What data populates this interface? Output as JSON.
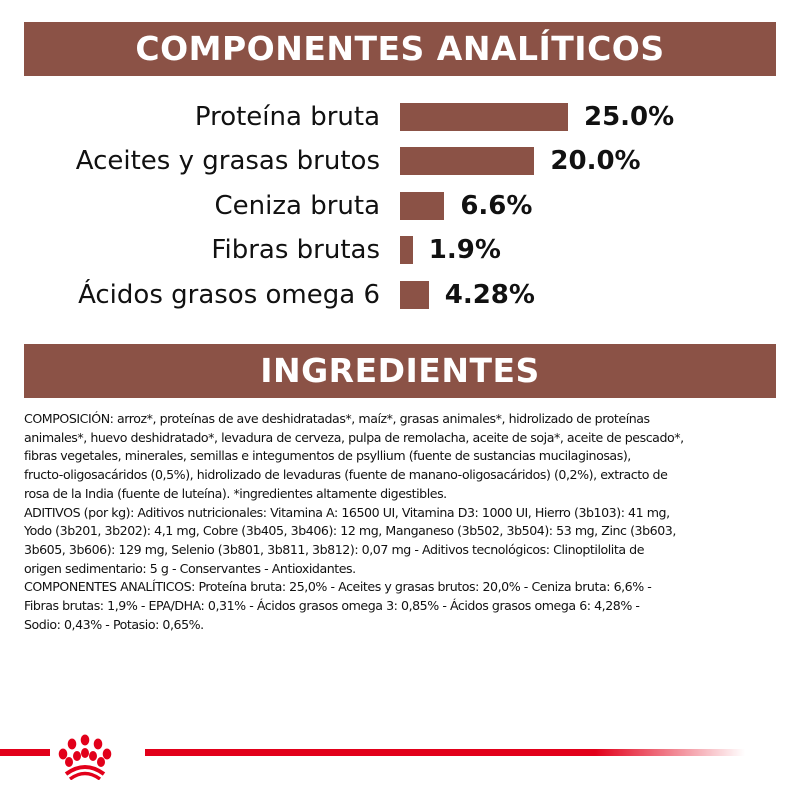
{
  "analytics_header": "COMPONENTES ANALÍTICOS",
  "ingredients_header": "INGREDIENTES",
  "chart_data": {
    "type": "bar",
    "orientation": "horizontal",
    "categories": [
      "Proteína bruta",
      "Aceites y grasas brutos",
      "Ceniza bruta",
      "Fibras brutas",
      "Ácidos grasos omega 6"
    ],
    "values": [
      25.0,
      20.0,
      6.6,
      1.9,
      4.28
    ],
    "value_labels": [
      "25.0%",
      "20.0%",
      "6.6%",
      "1.9%",
      "4.28%"
    ],
    "unit": "%",
    "bar_color": "#8b5246"
  },
  "ingredients_text": [
    "COMPOSICIÓN: arroz*, proteínas de ave deshidratadas*, maíz*, grasas animales*, hidrolizado de proteínas",
    "animales*, huevo deshidratado*, levadura de cerveza, pulpa de remolacha, aceite de soja*, aceite de pescado*,",
    "fibras vegetales, minerales, semillas e integumentos de psyllium (fuente de sustancias mucilaginosas),",
    "fructo-oligosacáridos (0,5%), hidrolizado de levaduras (fuente de manano-oligosacáridos) (0,2%), extracto de",
    "rosa de la India (fuente de luteína). *ingredientes altamente digestibles.",
    "ADITIVOS (por kg): Aditivos nutricionales: Vitamina A: 16500 UI, Vitamina D3: 1000 UI, Hierro (3b103): 41 mg,",
    "Yodo (3b201, 3b202): 4,1 mg, Cobre (3b405, 3b406): 12 mg, Manganeso (3b502, 3b504): 53 mg, Zinc (3b603,",
    "3b605, 3b606): 129 mg, Selenio (3b801, 3b811, 3b812): 0,07 mg - Aditivos tecnológicos: Clinoptilolita de",
    "origen sedimentario: 5 g - Conservantes - Antioxidantes.",
    "COMPONENTES ANALÍTICOS: Proteína bruta: 25,0% - Aceites y grasas brutos: 20,0% - Ceniza bruta: 6,6% -",
    "Fibras brutas: 1,9% - EPA/DHA: 0,31% - Ácidos grasos omega 3: 0,85% - Ácidos grasos omega 6: 4,28% -",
    "Sodio: 0,43% - Potasio: 0,65%."
  ],
  "brand_color": "#e2001a",
  "logo_icon": "royal-canin-crown-icon"
}
